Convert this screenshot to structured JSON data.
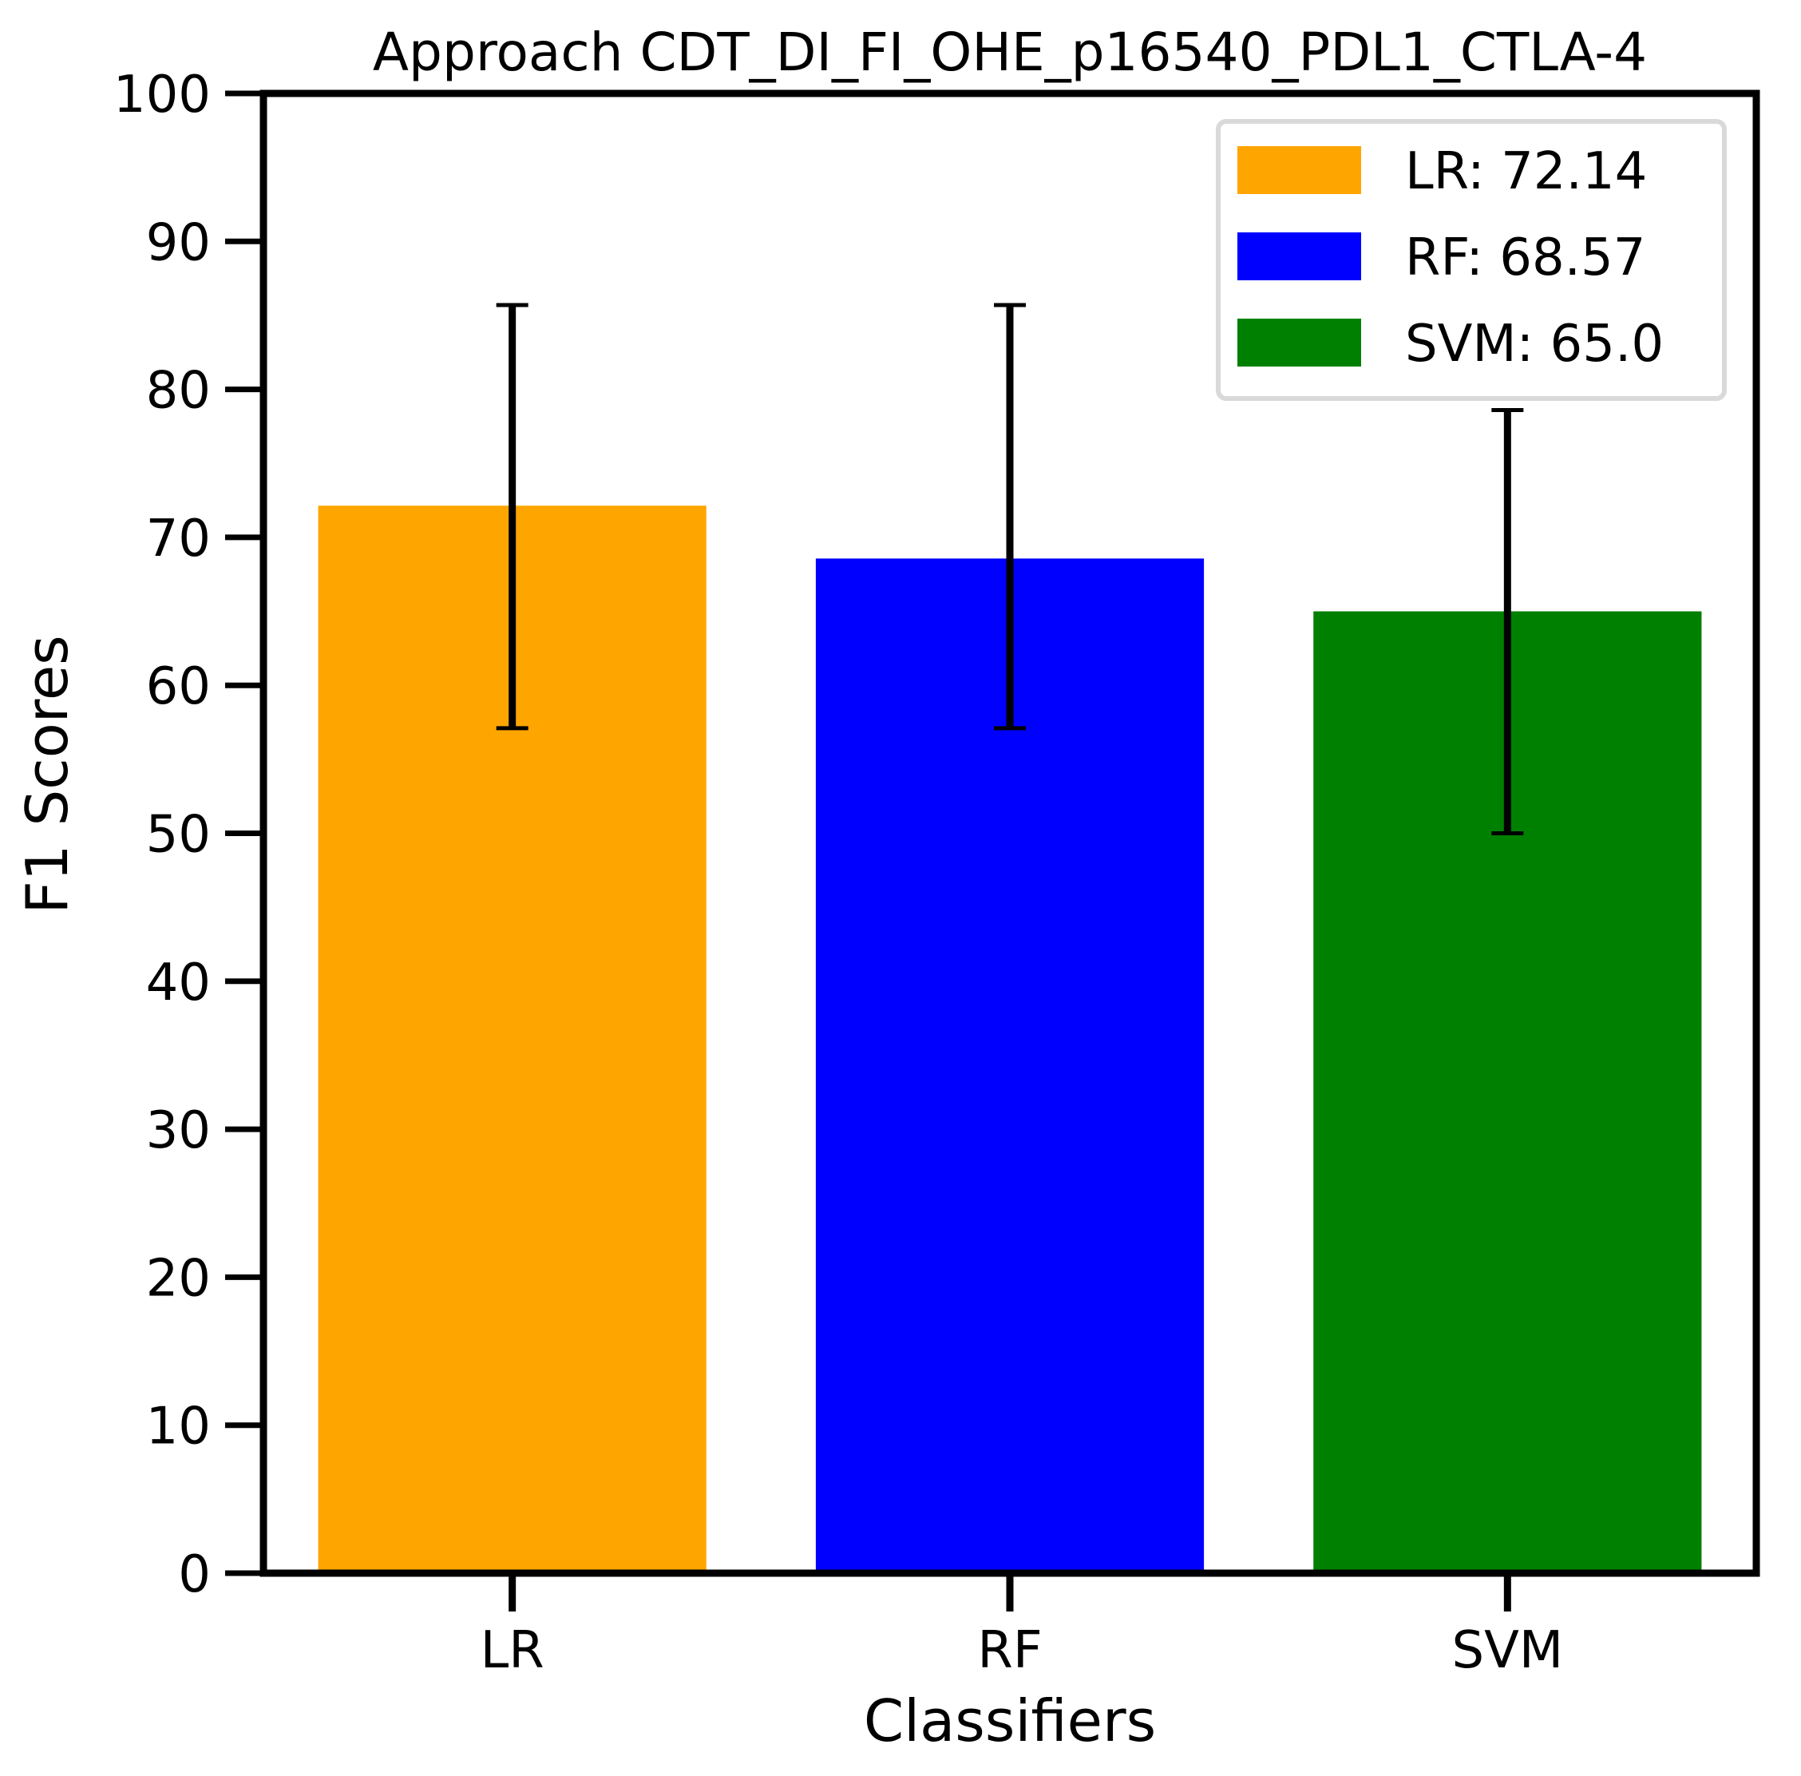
{
  "chart_data": {
    "type": "bar",
    "title": "Approach CDT_DI_FI_OHE_p16540_PDL1_CTLA-4",
    "xlabel": "Classifiers",
    "ylabel": "F1 Scores",
    "ylim": [
      0,
      100
    ],
    "yticks": [
      0,
      10,
      20,
      30,
      40,
      50,
      60,
      70,
      80,
      90,
      100
    ],
    "categories": [
      "LR",
      "RF",
      "SVM"
    ],
    "values": [
      72.14,
      68.57,
      65.0
    ],
    "error_low": [
      57.1,
      57.1,
      50.0
    ],
    "error_high": [
      85.7,
      85.7,
      78.6
    ],
    "colors": [
      "#ffa500",
      "#0000ff",
      "#008000"
    ],
    "legend": {
      "position": "top-right",
      "entries": [
        "LR: 72.14",
        "RF: 68.57",
        "SVM: 65.0"
      ]
    },
    "grid": false
  }
}
